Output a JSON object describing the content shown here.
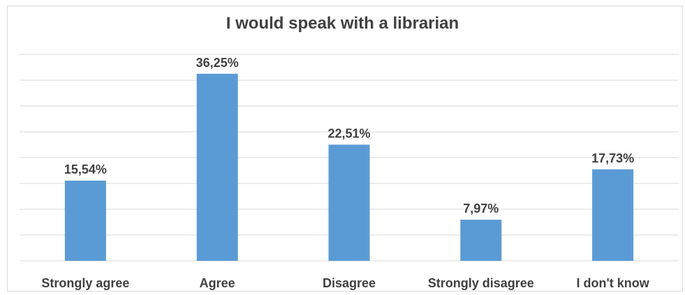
{
  "chart_data": {
    "type": "bar",
    "title": "I would speak with a librarian",
    "categories": [
      "Strongly agree",
      "Agree",
      "Disagree",
      "Strongly disagree",
      "I don't know"
    ],
    "values": [
      15.54,
      36.25,
      22.51,
      7.97,
      17.73
    ],
    "data_labels": [
      "15,54%",
      "36,25%",
      "22,51%",
      "7,97%",
      "17,73%"
    ],
    "xlabel": "",
    "ylabel": "",
    "ylim": [
      0,
      40
    ],
    "grid": true,
    "legend": "none",
    "bar_color": "#5b9bd5",
    "grid_color": "#d9d9d9",
    "text_color": "#404040"
  }
}
